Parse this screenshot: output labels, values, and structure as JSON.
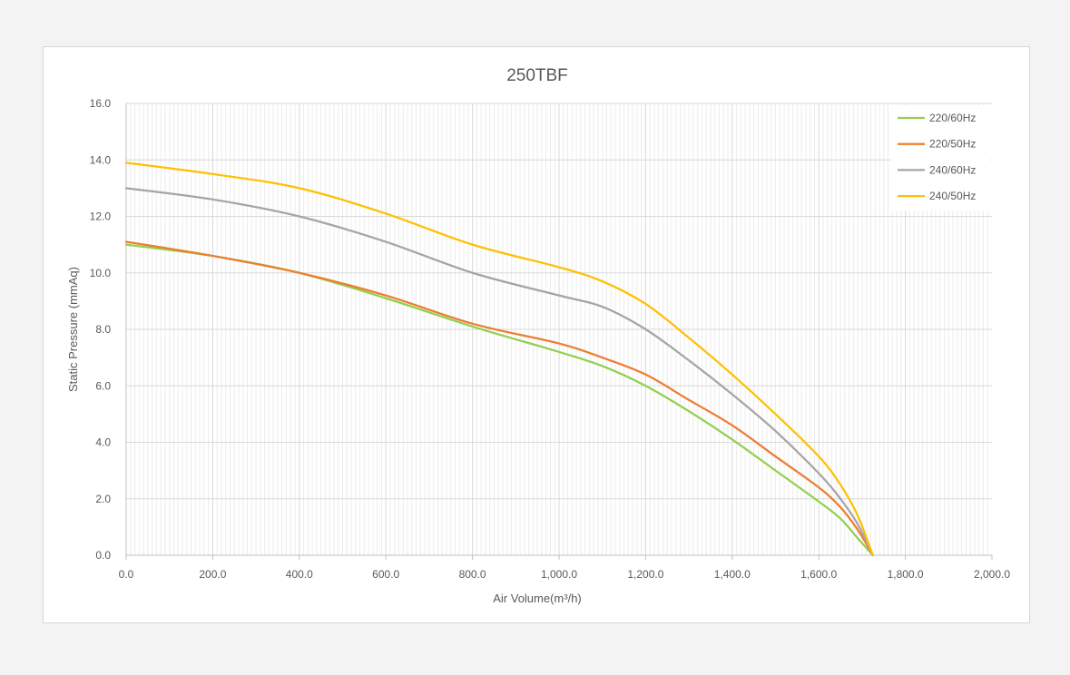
{
  "chart_data": {
    "type": "line",
    "title": "250TBF",
    "xlabel": "Air Volume(m³/h)",
    "ylabel": "Static Pressure (mmAq)",
    "xlim": [
      0,
      2000
    ],
    "ylim": [
      0,
      16
    ],
    "x_ticks": [
      "0.0",
      "200.0",
      "400.0",
      "600.0",
      "800.0",
      "1,000.0",
      "1,200.0",
      "1,400.0",
      "1,600.0",
      "1,800.0",
      "2,000.0"
    ],
    "y_ticks": [
      "0.0",
      "2.0",
      "4.0",
      "6.0",
      "8.0",
      "10.0",
      "12.0",
      "14.0",
      "16.0"
    ],
    "grid": true,
    "legend_position": "top-right",
    "series": [
      {
        "name": "220/60Hz",
        "color": "#92d050",
        "x": [
          0,
          200,
          400,
          600,
          800,
          1000,
          1100,
          1200,
          1300,
          1400,
          1500,
          1600,
          1650,
          1690,
          1725
        ],
        "y": [
          11.0,
          10.6,
          10.0,
          9.1,
          8.1,
          7.2,
          6.7,
          6.0,
          5.1,
          4.1,
          3.0,
          1.9,
          1.3,
          0.6,
          0.0
        ]
      },
      {
        "name": "220/50Hz",
        "color": "#ed7d31",
        "x": [
          0,
          200,
          400,
          600,
          800,
          1000,
          1100,
          1200,
          1300,
          1400,
          1500,
          1600,
          1650,
          1690,
          1725
        ],
        "y": [
          11.1,
          10.6,
          10.0,
          9.2,
          8.2,
          7.5,
          7.0,
          6.4,
          5.5,
          4.6,
          3.5,
          2.4,
          1.7,
          0.9,
          0.0
        ]
      },
      {
        "name": "240/60Hz",
        "color": "#a5a5a5",
        "x": [
          0,
          200,
          400,
          600,
          800,
          1000,
          1100,
          1200,
          1300,
          1400,
          1500,
          1600,
          1650,
          1690,
          1725
        ],
        "y": [
          13.0,
          12.6,
          12.0,
          11.1,
          10.0,
          9.2,
          8.8,
          8.0,
          6.9,
          5.7,
          4.4,
          2.9,
          2.0,
          1.1,
          0.0
        ]
      },
      {
        "name": "240/50Hz",
        "color": "#ffc000",
        "x": [
          0,
          200,
          400,
          600,
          800,
          1000,
          1100,
          1200,
          1300,
          1400,
          1500,
          1600,
          1650,
          1690,
          1725
        ],
        "y": [
          13.9,
          13.5,
          13.0,
          12.1,
          11.0,
          10.2,
          9.7,
          8.9,
          7.7,
          6.4,
          5.0,
          3.5,
          2.5,
          1.4,
          0.0
        ]
      }
    ]
  }
}
